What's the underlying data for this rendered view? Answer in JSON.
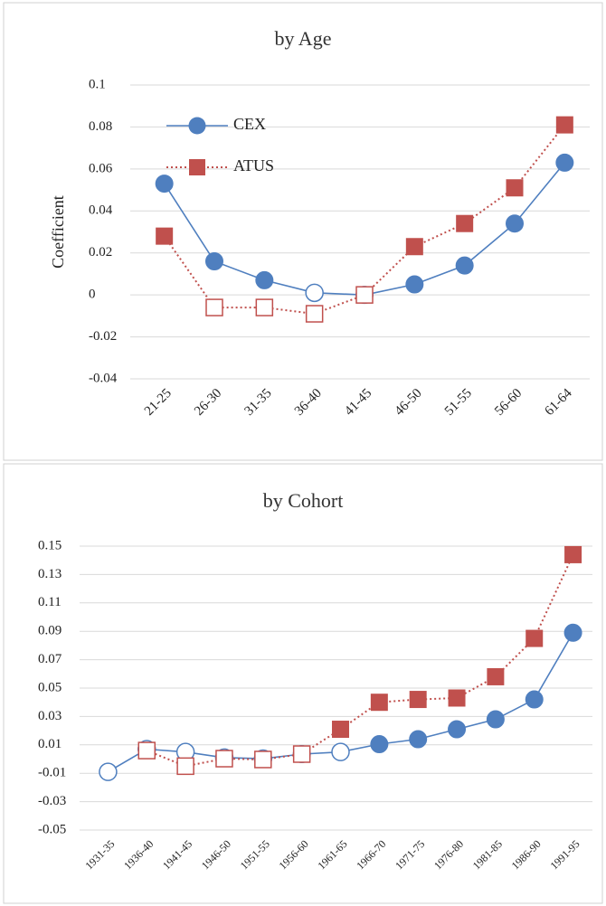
{
  "chart_data": [
    {
      "type": "line",
      "title": "by Age",
      "ylabel": "Coefficient",
      "categories": [
        "21-25",
        "26-30",
        "31-35",
        "36-40",
        "41-45",
        "46-50",
        "51-55",
        "56-60",
        "61-64"
      ],
      "series": [
        {
          "name": "CEX",
          "color": "#4f7fbf",
          "marker": "circle",
          "dash": "solid",
          "values": [
            0.053,
            0.016,
            0.007,
            0.001,
            0,
            0.005,
            0.014,
            0.034,
            0.063
          ],
          "hollow": [
            false,
            false,
            false,
            true,
            false,
            false,
            false,
            false,
            false
          ]
        },
        {
          "name": "ATUS",
          "color": "#c0504d",
          "marker": "square",
          "dash": "dotted",
          "values": [
            0.028,
            -0.006,
            -0.006,
            -0.009,
            0,
            0.023,
            0.034,
            0.051,
            0.081
          ],
          "hollow": [
            false,
            true,
            true,
            true,
            true,
            false,
            false,
            false,
            false
          ]
        }
      ],
      "ylim": [
        -0.04,
        0.1
      ],
      "yticks": [
        -0.04,
        -0.02,
        0,
        0.02,
        0.04,
        0.06,
        0.08,
        0.1
      ],
      "grid": true,
      "legend": "upper left"
    },
    {
      "type": "line",
      "title": "by Cohort",
      "categories": [
        "1931-35",
        "1936-40",
        "1941-45",
        "1946-50",
        "1951-55",
        "1956-60",
        "1961-65",
        "1966-70",
        "1971-75",
        "1976-80",
        "1981-85",
        "1986-90",
        "1991-95"
      ],
      "series": [
        {
          "color": "#4f7fbf",
          "marker": "circle",
          "dash": "solid",
          "values": [
            -0.009,
            0.007,
            0.005,
            0.001,
            0.0003,
            0.0035,
            0.005,
            0.0105,
            0.014,
            0.021,
            0.028,
            0.042,
            0.089
          ],
          "hollow": [
            true,
            true,
            true,
            true,
            true,
            false,
            true,
            false,
            false,
            false,
            false,
            false,
            false
          ]
        },
        {
          "color": "#c0504d",
          "marker": "square",
          "dash": "dotted",
          "values": [
            null,
            0.006,
            -0.005,
            0.0003,
            -0.0003,
            0.0035,
            0.021,
            0.04,
            0.042,
            0.043,
            0.058,
            0.085,
            0.144
          ],
          "hollow": [
            false,
            true,
            true,
            true,
            true,
            true,
            false,
            false,
            false,
            false,
            false,
            false,
            false
          ]
        }
      ],
      "ylim": [
        -0.05,
        0.15
      ],
      "yticks": [
        -0.05,
        -0.03,
        -0.01,
        0.01,
        0.03,
        0.05,
        0.07,
        0.09,
        0.11,
        0.13,
        0.15
      ],
      "grid": true
    }
  ]
}
